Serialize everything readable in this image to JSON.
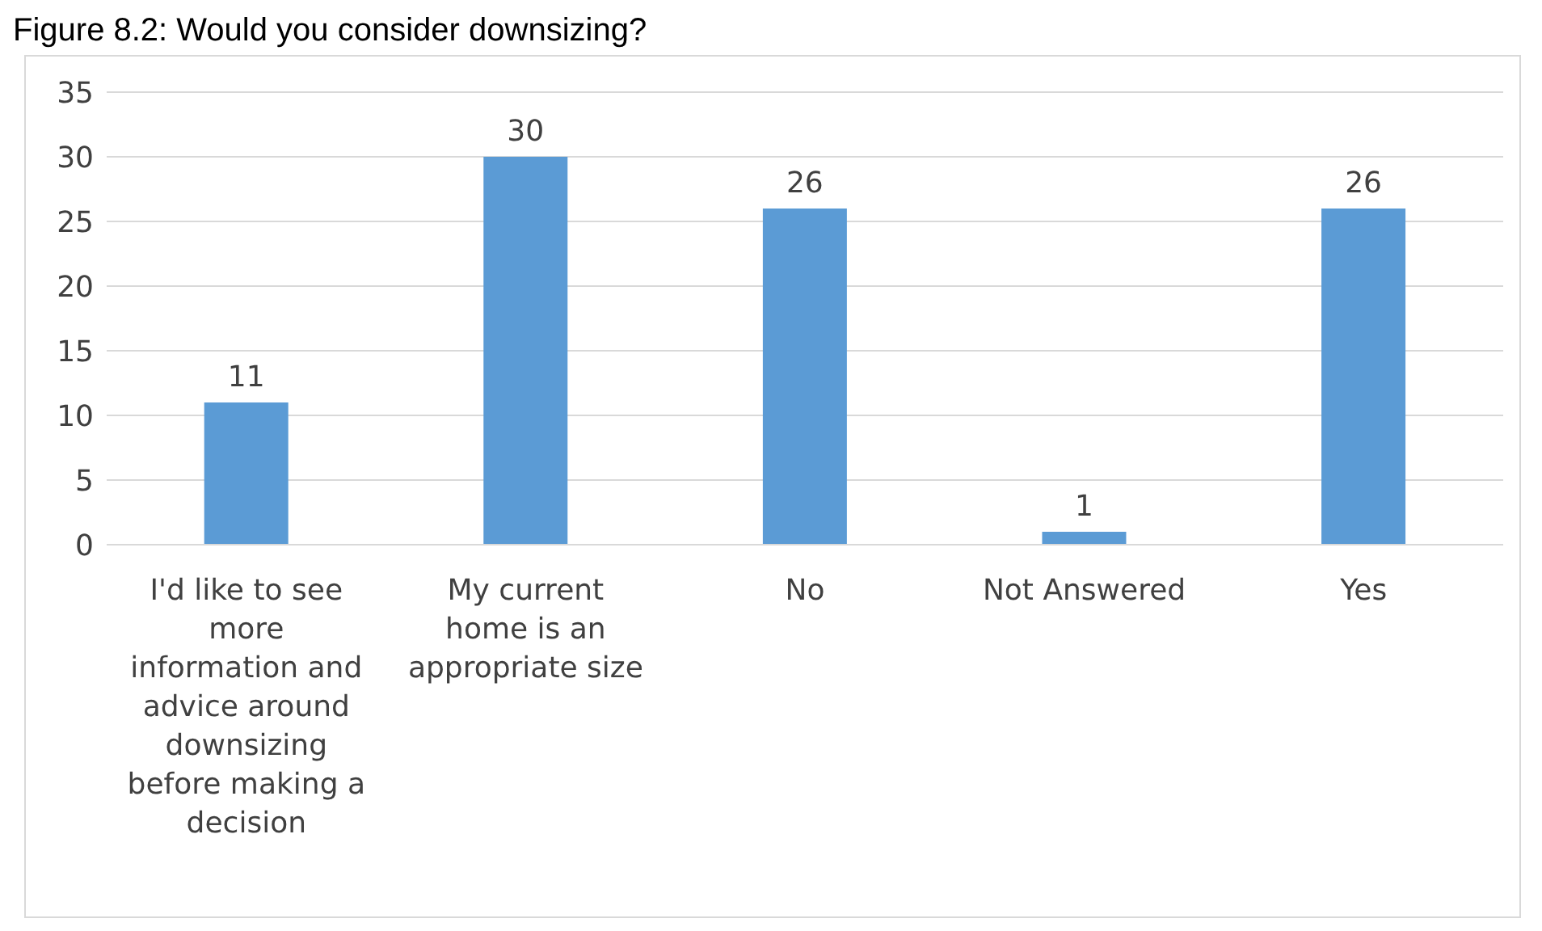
{
  "chart_data": {
    "type": "bar",
    "title": "Figure 8.2: Would you consider downsizing?",
    "categories": [
      "I'd like to see more information and advice around downsizing before making a decision",
      "My current home is an appropriate size",
      "No",
      "Not Answered",
      "Yes"
    ],
    "values": [
      11,
      30,
      26,
      1,
      26
    ],
    "color": "#5b9bd5",
    "ylim": [
      0,
      35
    ],
    "yticks": [
      0,
      5,
      10,
      15,
      20,
      25,
      30,
      35
    ],
    "grid": "y",
    "data_labels": true
  }
}
